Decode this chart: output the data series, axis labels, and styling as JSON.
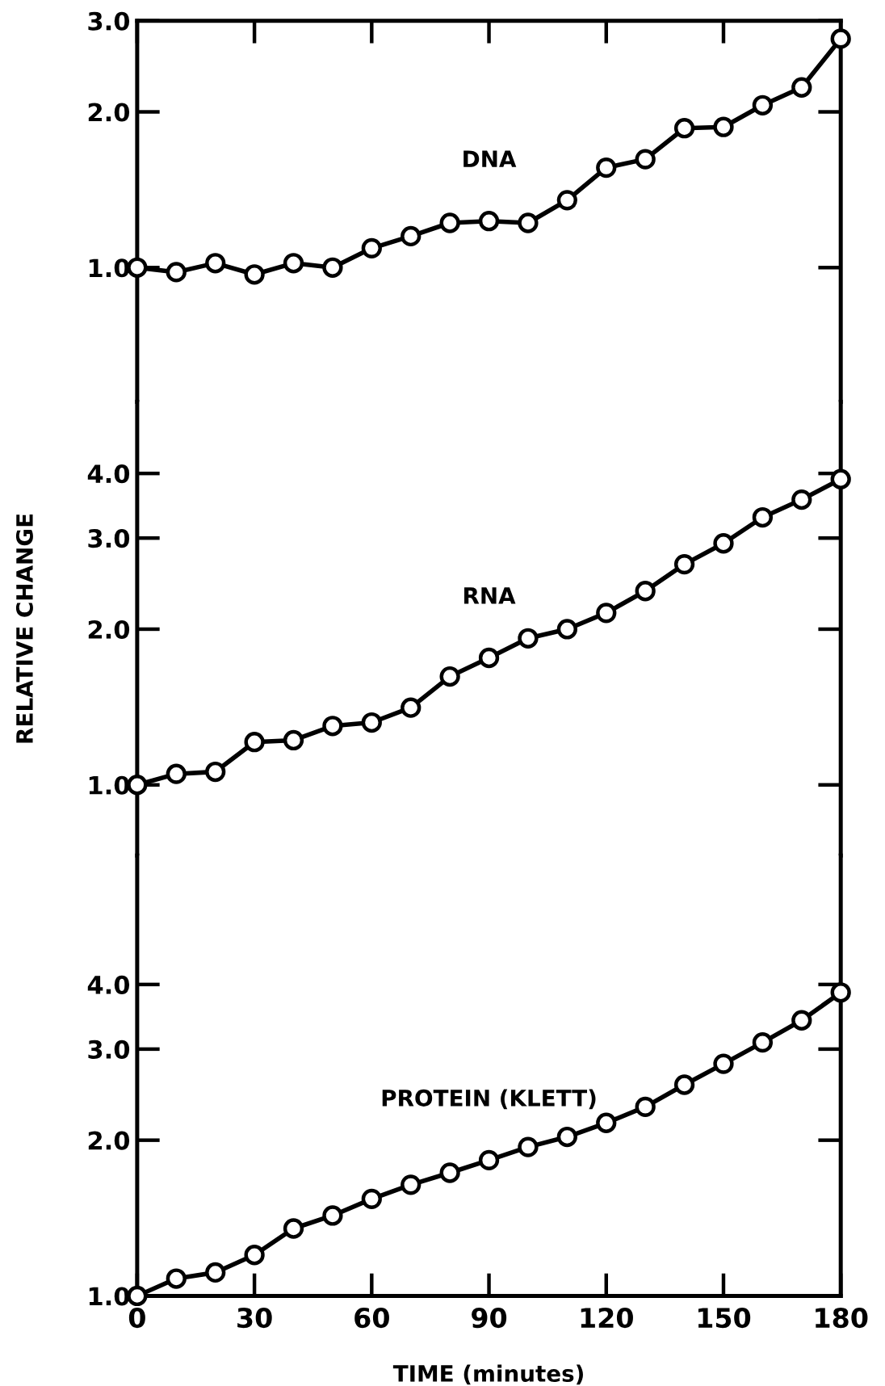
{
  "chart_data": [
    {
      "type": "line",
      "marker": "circle",
      "line_style": "solid",
      "log": true,
      "tick_labels": "y",
      "x": [
        0,
        10,
        20,
        30,
        40,
        50,
        60,
        70,
        80,
        90,
        100,
        110,
        120,
        130,
        140,
        150,
        160,
        170,
        180
      ],
      "xlim": [
        0,
        180
      ],
      "xticks": [
        0,
        30,
        60,
        90,
        120,
        150,
        180
      ],
      "ylim": [
        0.55,
        3.0
      ],
      "yticks": [
        {
          "value": 1,
          "label": "1.0"
        },
        {
          "value": 2,
          "label": "2.0"
        },
        {
          "value": 3,
          "label": "3.0"
        }
      ],
      "series": [
        {
          "name": "DNA",
          "color": "#000000",
          "values": [
            1.0,
            0.98,
            1.02,
            0.97,
            1.02,
            1.0,
            1.09,
            1.15,
            1.22,
            1.23,
            1.22,
            1.35,
            1.56,
            1.62,
            1.86,
            1.87,
            2.06,
            2.23,
            2.77
          ]
        }
      ],
      "legend": false
    },
    {
      "type": "line",
      "marker": "circle",
      "line_style": "solid",
      "log": true,
      "tick_labels": "y",
      "ylabel": "RELATIVE CHANGE",
      "x": [
        0,
        10,
        20,
        30,
        40,
        50,
        60,
        70,
        80,
        90,
        100,
        110,
        120,
        130,
        140,
        150,
        160,
        170,
        180
      ],
      "xlim": [
        0,
        180
      ],
      "xticks": [
        0,
        30,
        60,
        90,
        120,
        150,
        180
      ],
      "ylim": [
        0.73,
        5.5
      ],
      "yticks": [
        {
          "value": 1,
          "label": "1.0"
        },
        {
          "value": 2,
          "label": "2.0"
        },
        {
          "value": 3,
          "label": "3.0"
        },
        {
          "value": 4,
          "label": "4.0"
        }
      ],
      "series": [
        {
          "name": "RNA",
          "color": "#000000",
          "values": [
            1.0,
            1.05,
            1.06,
            1.21,
            1.22,
            1.3,
            1.32,
            1.41,
            1.62,
            1.76,
            1.92,
            2.0,
            2.15,
            2.37,
            2.67,
            2.93,
            3.29,
            3.56,
            3.9
          ]
        }
      ],
      "legend": false
    },
    {
      "type": "line",
      "marker": "circle",
      "line_style": "solid",
      "log": true,
      "xlabel": "TIME (minutes)",
      "x": [
        0,
        10,
        20,
        30,
        40,
        50,
        60,
        70,
        80,
        90,
        100,
        110,
        120,
        130,
        140,
        150,
        160,
        170,
        180
      ],
      "xlim": [
        0,
        180
      ],
      "xticks": [
        0,
        30,
        60,
        90,
        120,
        150,
        180
      ],
      "ylim": [
        1.0,
        7.1
      ],
      "yticks": [
        {
          "value": 1,
          "label": "1.0"
        },
        {
          "value": 2,
          "label": "2.0"
        },
        {
          "value": 3,
          "label": "3.0"
        },
        {
          "value": 4,
          "label": "4.0"
        }
      ],
      "series": [
        {
          "name": "PROTEIN (KLETT)",
          "color": "#000000",
          "values": [
            1.0,
            1.08,
            1.11,
            1.2,
            1.35,
            1.43,
            1.54,
            1.64,
            1.73,
            1.83,
            1.94,
            2.03,
            2.16,
            2.32,
            2.56,
            2.81,
            3.09,
            3.41,
            3.86
          ]
        }
      ],
      "legend": false
    }
  ]
}
